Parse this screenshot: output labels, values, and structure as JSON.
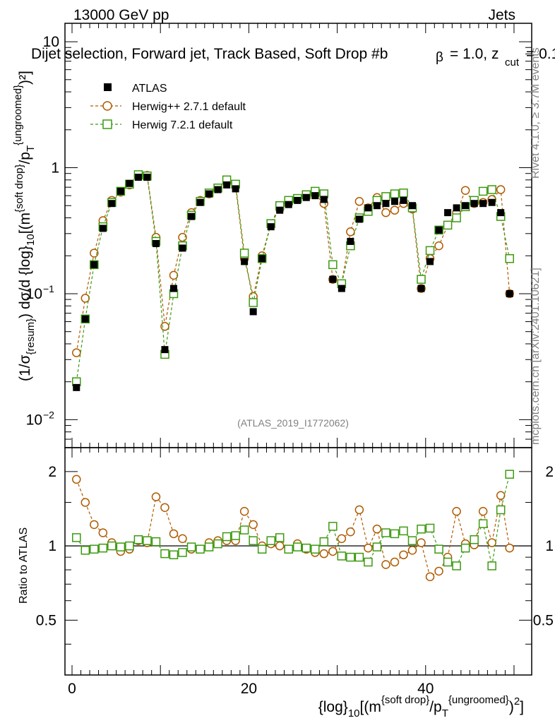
{
  "header": {
    "energy_label": "13000 GeV pp",
    "category_label": "Jets",
    "selection_title": "Dijet selection, Forward jet, Track Based, Soft Drop #b",
    "beta_text": "= 1.0, z",
    "zcut_sub": "cut",
    "zcut_text": "= 0.1"
  },
  "side_labels": {
    "rivet": "Rivet 4.1.0, ≥ 3.7M events",
    "mcplots": "mcplots.cern.ch [arXiv:2401.10621]"
  },
  "watermark": "(ATLAS_2019_I1772062)",
  "axes": {
    "y_main": {
      "p1": "(1/σ",
      "sub1": "{resum}",
      "p2": ") dσ/d {log}",
      "sub2": "10",
      "p3": "[(m",
      "sup1": "{soft drop}",
      "p4": "/p",
      "sub3": "T",
      "sup2": "{ungroomed}",
      "p5": ")²]"
    },
    "y_ratio": "Ratio to ATLAS",
    "x": {
      "p1": "{log}",
      "sub1": "10",
      "p2": "[(m",
      "sup1": "{soft drop}",
      "p3": "/p",
      "sub2": "T",
      "sup2": "{ungroomed}",
      "p4": ")",
      "sup3": "2",
      "p5": "]"
    },
    "y_main_ticks": [
      {
        "label": "10",
        "value": 10
      },
      {
        "label": "1",
        "value": 1
      },
      {
        "label": "10",
        "exp": "−1",
        "value": 0.1
      },
      {
        "label": "10",
        "exp": "−2",
        "value": 0.01
      }
    ],
    "y_ratio_ticks": [
      {
        "label": "2",
        "value": 2
      },
      {
        "label": "1",
        "value": 1
      },
      {
        "label": "0.5",
        "value": 0.5
      }
    ],
    "x_ticks": [
      {
        "label": "0",
        "value": 0
      },
      {
        "label": "20",
        "value": 20
      },
      {
        "label": "40",
        "value": 40
      }
    ]
  },
  "legend": {
    "atlas": "ATLAS",
    "herwigpp": "Herwig++ 2.7.1 default",
    "herwig7": "Herwig 7.2.1 default"
  },
  "colors": {
    "atlas": "#000000",
    "herwigpp": "#b05a00",
    "herwig7": "#3c9a10",
    "grey_text": "#808080"
  },
  "chart_data": {
    "type": "scatter",
    "title": "Dijet selection, Forward jet, Track Based, Soft Drop",
    "xlabel": "{log}10[(m{soft drop}/pT{ungroomed})2]",
    "ylabel": "(1/σ{resum}) dσ/d {log}10[(m{soft drop}/pT{ungroomed})2]",
    "ylabel_ratio": "Ratio to ATLAS",
    "xlim": [
      -0.8,
      52
    ],
    "ylim": [
      0.006,
      14
    ],
    "ylim_ratio": [
      0.3,
      2.5
    ],
    "yscale": "log",
    "x": [
      0.5,
      1.5,
      2.5,
      3.5,
      4.5,
      5.5,
      6.5,
      7.5,
      8.5,
      9.5,
      10.5,
      11.5,
      12.5,
      13.5,
      14.5,
      15.5,
      16.5,
      17.5,
      18.5,
      19.5,
      20.5,
      21.5,
      22.5,
      23.5,
      24.5,
      25.5,
      26.5,
      27.5,
      28.5,
      29.5,
      30.5,
      31.5,
      32.5,
      33.5,
      34.5,
      35.5,
      36.5,
      37.5,
      38.5,
      39.5,
      40.5,
      41.5,
      42.5,
      43.5,
      44.5,
      45.5,
      46.5,
      47.5,
      48.5,
      49.5
    ],
    "series": [
      {
        "name": "ATLAS",
        "marker": "filled-square",
        "values": [
          0.018,
          0.063,
          0.17,
          0.33,
          0.52,
          0.65,
          0.75,
          0.84,
          0.84,
          0.25,
          0.036,
          0.11,
          0.23,
          0.41,
          0.53,
          0.62,
          0.67,
          0.73,
          0.68,
          0.18,
          0.072,
          0.19,
          0.34,
          0.46,
          0.51,
          0.55,
          0.58,
          0.6,
          0.56,
          0.13,
          0.11,
          0.26,
          0.39,
          0.48,
          0.5,
          0.52,
          0.54,
          0.55,
          0.5,
          0.11,
          0.18,
          0.32,
          0.44,
          0.48,
          0.5,
          0.52,
          0.52,
          0.53,
          0.44,
          0.1
        ],
        "ratio": [
          1,
          1,
          1,
          1,
          1,
          1,
          1,
          1,
          1,
          1,
          1,
          1,
          1,
          1,
          1,
          1,
          1,
          1,
          1,
          1,
          1,
          1,
          1,
          1,
          1,
          1,
          1,
          1,
          1,
          1,
          1,
          1,
          1,
          1,
          1,
          1,
          1,
          1,
          1,
          1,
          1,
          1,
          1,
          1,
          1,
          1,
          1,
          1,
          1,
          1
        ]
      },
      {
        "name": "Herwig++ 2.7.1 default",
        "marker": "open-circle",
        "values": [
          0.034,
          0.092,
          0.21,
          0.38,
          0.55,
          0.64,
          0.73,
          0.86,
          0.87,
          0.28,
          0.055,
          0.14,
          0.28,
          0.44,
          0.55,
          0.62,
          0.69,
          0.76,
          0.72,
          0.19,
          0.095,
          0.2,
          0.36,
          0.47,
          0.52,
          0.56,
          0.6,
          0.61,
          0.52,
          0.13,
          0.12,
          0.31,
          0.54,
          0.48,
          0.58,
          0.44,
          0.46,
          0.52,
          0.47,
          0.11,
          0.19,
          0.24,
          0.35,
          0.44,
          0.66,
          0.52,
          0.53,
          0.56,
          0.67,
          0.1
        ],
        "ratio": [
          1.86,
          1.5,
          1.22,
          1.13,
          1.03,
          0.95,
          0.97,
          1.05,
          1.03,
          1.58,
          1.43,
          1.12,
          1.07,
          0.97,
          0.97,
          1.03,
          1.05,
          1.05,
          1.05,
          1.38,
          1.22,
          1.0,
          1.02,
          1.0,
          0.97,
          1.02,
          0.97,
          0.94,
          0.93,
          0.95,
          1.07,
          1.14,
          1.4,
          0.98,
          1.17,
          0.84,
          0.86,
          0.92,
          0.96,
          1.03,
          0.75,
          0.79,
          0.9,
          1.38,
          1.02,
          1.01,
          1.38,
          1.03,
          1.6,
          0.98
        ]
      },
      {
        "name": "Herwig 7.2.1 default",
        "marker": "open-square",
        "values": [
          0.02,
          0.063,
          0.17,
          0.34,
          0.53,
          0.65,
          0.74,
          0.88,
          0.86,
          0.26,
          0.033,
          0.1,
          0.24,
          0.42,
          0.54,
          0.63,
          0.69,
          0.8,
          0.74,
          0.21,
          0.085,
          0.19,
          0.36,
          0.5,
          0.55,
          0.57,
          0.61,
          0.65,
          0.62,
          0.17,
          0.12,
          0.24,
          0.4,
          0.45,
          0.55,
          0.59,
          0.62,
          0.63,
          0.48,
          0.13,
          0.22,
          0.32,
          0.35,
          0.4,
          0.49,
          0.55,
          0.65,
          0.67,
          0.41,
          0.19
        ],
        "ratio": [
          1.08,
          0.96,
          0.97,
          0.98,
          1.0,
          0.99,
          1.0,
          1.06,
          1.05,
          1.04,
          0.93,
          0.92,
          0.94,
          0.99,
          0.97,
          0.99,
          1.02,
          1.09,
          1.1,
          1.16,
          1.05,
          0.97,
          1.05,
          1.08,
          0.97,
          0.99,
          0.98,
          0.97,
          1.04,
          1.2,
          0.91,
          0.9,
          0.9,
          0.86,
          0.99,
          1.13,
          1.12,
          1.15,
          1.05,
          1.17,
          1.18,
          0.97,
          0.86,
          0.83,
          0.98,
          1.06,
          1.23,
          0.83,
          1.4,
          1.95
        ]
      }
    ]
  }
}
